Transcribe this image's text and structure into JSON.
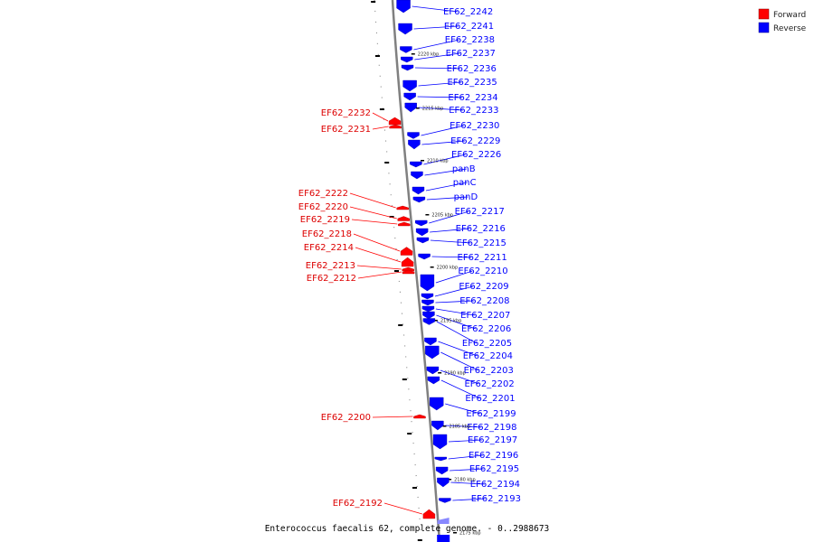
{
  "legend": [
    {
      "label": "Forward",
      "color": "#ff0000"
    },
    {
      "label": "Reverse",
      "color": "#0000ff"
    }
  ],
  "caption": "Enterococcus faecalis 62, complete genome. - 0..2988673",
  "colors": {
    "forward": "#ff0000",
    "reverse": "#0000ff",
    "backbone": "#808080"
  },
  "kbp_marks": [
    "2220 kbp",
    "2215 kbp",
    "2210 kbp",
    "2205 kbp",
    "2200 kbp",
    "2195 kbp",
    "2190 kbp",
    "2185 kbp",
    "2180 kbp",
    "2175 kbp"
  ],
  "forward_genes": [
    "EF62_2232",
    "EF62_2231",
    "EF62_2222",
    "EF62_2220",
    "EF62_2219",
    "EF62_2218",
    "EF62_2214",
    "EF62_2213",
    "EF62_2212",
    "EF62_2200",
    "EF62_2192"
  ],
  "reverse_genes": [
    "EF62_2242",
    "EF62_2241",
    "EF62_2238",
    "EF62_2237",
    "EF62_2236",
    "EF62_2235",
    "EF62_2234",
    "EF62_2233",
    "EF62_2230",
    "EF62_2229",
    "EF62_2226",
    "panB",
    "panC",
    "panD",
    "EF62_2217",
    "EF62_2216",
    "EF62_2215",
    "EF62_2211",
    "EF62_2210",
    "EF62_2209",
    "EF62_2208",
    "EF62_2207",
    "EF62_2206",
    "EF62_2205",
    "EF62_2204",
    "EF62_2203",
    "EF62_2202",
    "EF62_2201",
    "EF62_2199",
    "EF62_2198",
    "EF62_2197",
    "EF62_2196",
    "EF62_2195",
    "EF62_2194",
    "EF62_2193"
  ]
}
